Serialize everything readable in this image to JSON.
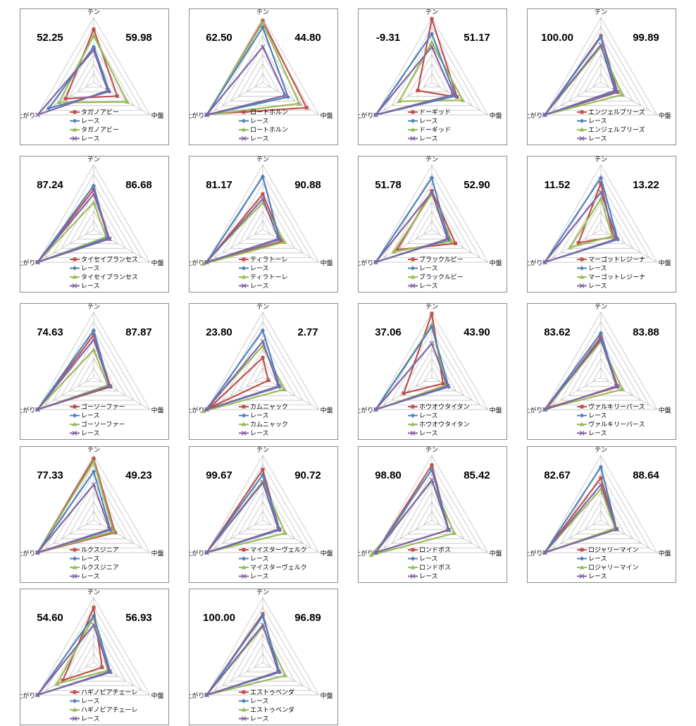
{
  "chart_data": [
    {
      "type": "radar",
      "axes": [
        "テン",
        "中盤",
        "上がり"
      ],
      "left_value": "52.25",
      "right_value": "59.98",
      "series": [
        {
          "name": "タガノアビー",
          "color": "#c0504d",
          "marker": "square",
          "values": [
            0.82,
            0.42,
            0.5
          ]
        },
        {
          "name": "レース",
          "color": "#4f81bd",
          "marker": "diamond",
          "values": [
            0.55,
            0.28,
            0.8
          ]
        },
        {
          "name": "タガノアビー",
          "color": "#9bbb59",
          "marker": "triangle",
          "values": [
            0.72,
            0.6,
            0.62
          ]
        },
        {
          "name": "レース",
          "color": "#8064a2",
          "marker": "x",
          "values": [
            0.5,
            0.25,
            1.0
          ]
        }
      ]
    },
    {
      "type": "radar",
      "axes": [
        "テン",
        "中盤",
        "上がり"
      ],
      "left_value": "62.50",
      "right_value": "44.80",
      "series": [
        {
          "name": "ロートホルン",
          "color": "#c0504d",
          "marker": "square",
          "values": [
            0.95,
            0.78,
            0.98
          ]
        },
        {
          "name": "レース",
          "color": "#4f81bd",
          "marker": "diamond",
          "values": [
            0.85,
            0.45,
            1.0
          ]
        },
        {
          "name": "ロートホルン",
          "color": "#9bbb59",
          "marker": "triangle",
          "values": [
            0.92,
            0.65,
            1.0
          ]
        },
        {
          "name": "レース",
          "color": "#8064a2",
          "marker": "x",
          "values": [
            0.55,
            0.4,
            1.0
          ]
        }
      ]
    },
    {
      "type": "radar",
      "axes": [
        "テン",
        "中盤",
        "上がり"
      ],
      "left_value": "-9.31",
      "right_value": "51.17",
      "series": [
        {
          "name": "ドーギッド",
          "color": "#c0504d",
          "marker": "square",
          "values": [
            0.98,
            0.45,
            0.25
          ]
        },
        {
          "name": "レース",
          "color": "#4f81bd",
          "marker": "diamond",
          "values": [
            0.75,
            0.42,
            1.0
          ]
        },
        {
          "name": "ドーギッド",
          "color": "#9bbb59",
          "marker": "triangle",
          "values": [
            0.62,
            0.55,
            0.58
          ]
        },
        {
          "name": "レース",
          "color": "#8064a2",
          "marker": "x",
          "values": [
            0.55,
            0.38,
            1.0
          ]
        }
      ]
    },
    {
      "type": "radar",
      "axes": [
        "テン",
        "中盤",
        "上がり"
      ],
      "left_value": "100.00",
      "right_value": "99.89",
      "series": [
        {
          "name": "エンジェルブリーズ",
          "color": "#c0504d",
          "marker": "square",
          "values": [
            0.72,
            0.3,
            1.0
          ]
        },
        {
          "name": "レース",
          "color": "#4f81bd",
          "marker": "diamond",
          "values": [
            0.7,
            0.28,
            1.0
          ]
        },
        {
          "name": "エンジェルブリーズ",
          "color": "#9bbb59",
          "marker": "triangle",
          "values": [
            0.55,
            0.38,
            1.0
          ]
        },
        {
          "name": "レース",
          "color": "#8064a2",
          "marker": "x",
          "values": [
            0.58,
            0.25,
            1.0
          ]
        }
      ]
    },
    {
      "type": "radar",
      "axes": [
        "テン",
        "中盤",
        "上がり"
      ],
      "left_value": "87.24",
      "right_value": "86.68",
      "series": [
        {
          "name": "タイセイブランセス",
          "color": "#c0504d",
          "marker": "square",
          "values": [
            0.62,
            0.28,
            1.0
          ]
        },
        {
          "name": "レース",
          "color": "#4f81bd",
          "marker": "diamond",
          "values": [
            0.68,
            0.25,
            1.0
          ]
        },
        {
          "name": "タイセイブランセス",
          "color": "#9bbb59",
          "marker": "triangle",
          "values": [
            0.42,
            0.22,
            1.0
          ]
        },
        {
          "name": "レース",
          "color": "#8064a2",
          "marker": "x",
          "values": [
            0.55,
            0.28,
            1.0
          ]
        }
      ]
    },
    {
      "type": "radar",
      "axes": [
        "テン",
        "中盤",
        "上がり"
      ],
      "left_value": "81.17",
      "right_value": "90.88",
      "series": [
        {
          "name": "ティラトーレ",
          "color": "#c0504d",
          "marker": "square",
          "values": [
            0.55,
            0.35,
            1.0
          ]
        },
        {
          "name": "レース",
          "color": "#4f81bd",
          "marker": "diamond",
          "values": [
            0.82,
            0.3,
            1.0
          ]
        },
        {
          "name": "ティラトーレ",
          "color": "#9bbb59",
          "marker": "triangle",
          "values": [
            0.42,
            0.38,
            1.05
          ]
        },
        {
          "name": "レース",
          "color": "#8064a2",
          "marker": "x",
          "values": [
            0.48,
            0.28,
            1.0
          ]
        }
      ]
    },
    {
      "type": "radar",
      "axes": [
        "テン",
        "中盤",
        "上がり"
      ],
      "left_value": "51.78",
      "right_value": "52.90",
      "series": [
        {
          "name": "ブラックルビー",
          "color": "#c0504d",
          "marker": "square",
          "values": [
            0.6,
            0.42,
            0.62
          ]
        },
        {
          "name": "レース",
          "color": "#4f81bd",
          "marker": "diamond",
          "values": [
            0.8,
            0.3,
            1.0
          ]
        },
        {
          "name": "ブラックルビー",
          "color": "#9bbb59",
          "marker": "triangle",
          "values": [
            0.55,
            0.35,
            0.68
          ]
        },
        {
          "name": "レース",
          "color": "#8064a2",
          "marker": "x",
          "values": [
            0.58,
            0.28,
            1.0
          ]
        }
      ]
    },
    {
      "type": "radar",
      "axes": [
        "テン",
        "中盤",
        "上がり"
      ],
      "left_value": "11.52",
      "right_value": "13.22",
      "series": [
        {
          "name": "マーゴットレジーナ",
          "color": "#c0504d",
          "marker": "square",
          "values": [
            0.72,
            0.22,
            0.4
          ]
        },
        {
          "name": "レース",
          "color": "#4f81bd",
          "marker": "diamond",
          "values": [
            0.8,
            0.3,
            1.0
          ]
        },
        {
          "name": "マーゴットレジーナ",
          "color": "#9bbb59",
          "marker": "triangle",
          "values": [
            0.48,
            0.2,
            0.55
          ]
        },
        {
          "name": "レース",
          "color": "#8064a2",
          "marker": "x",
          "values": [
            0.58,
            0.28,
            1.0
          ]
        }
      ]
    },
    {
      "type": "radar",
      "axes": [
        "テン",
        "中盤",
        "上がり"
      ],
      "left_value": "74.63",
      "right_value": "87.87",
      "series": [
        {
          "name": "ゴーソーファー",
          "color": "#c0504d",
          "marker": "square",
          "values": [
            0.65,
            0.3,
            1.0
          ]
        },
        {
          "name": "レース",
          "color": "#4f81bd",
          "marker": "diamond",
          "values": [
            0.72,
            0.28,
            1.0
          ]
        },
        {
          "name": "ゴーソーファー",
          "color": "#9bbb59",
          "marker": "triangle",
          "values": [
            0.42,
            0.25,
            1.0
          ]
        },
        {
          "name": "レース",
          "color": "#8064a2",
          "marker": "x",
          "values": [
            0.58,
            0.28,
            1.0
          ]
        }
      ]
    },
    {
      "type": "radar",
      "axes": [
        "テン",
        "中盤",
        "上がり"
      ],
      "left_value": "23.80",
      "right_value": "2.77",
      "series": [
        {
          "name": "カムニャック",
          "color": "#c0504d",
          "marker": "square",
          "values": [
            0.3,
            0.1,
            0.95
          ]
        },
        {
          "name": "レース",
          "color": "#4f81bd",
          "marker": "diamond",
          "values": [
            0.72,
            0.3,
            1.0
          ]
        },
        {
          "name": "カムニャック",
          "color": "#9bbb59",
          "marker": "triangle",
          "values": [
            0.48,
            0.38,
            1.05
          ]
        },
        {
          "name": "レース",
          "color": "#8064a2",
          "marker": "x",
          "values": [
            0.55,
            0.28,
            1.0
          ]
        }
      ]
    },
    {
      "type": "radar",
      "axes": [
        "テン",
        "中盤",
        "上がり"
      ],
      "left_value": "37.06",
      "right_value": "43.90",
      "series": [
        {
          "name": "ホウオウタイタン",
          "color": "#c0504d",
          "marker": "square",
          "values": [
            0.98,
            0.2,
            0.5
          ]
        },
        {
          "name": "レース",
          "color": "#4f81bd",
          "marker": "diamond",
          "values": [
            0.78,
            0.3,
            1.0
          ]
        },
        {
          "name": "ホウオウタイタン",
          "color": "#9bbb59",
          "marker": "triangle",
          "values": [
            0.8,
            0.25,
            1.0
          ]
        },
        {
          "name": "レース",
          "color": "#8064a2",
          "marker": "x",
          "values": [
            0.52,
            0.28,
            1.0
          ]
        }
      ]
    },
    {
      "type": "radar",
      "axes": [
        "テン",
        "中盤",
        "上がり"
      ],
      "left_value": "83.62",
      "right_value": "83.88",
      "series": [
        {
          "name": "ヴァルキリーバース",
          "color": "#c0504d",
          "marker": "square",
          "values": [
            0.62,
            0.3,
            0.95
          ]
        },
        {
          "name": "レース",
          "color": "#4f81bd",
          "marker": "diamond",
          "values": [
            0.68,
            0.28,
            1.0
          ]
        },
        {
          "name": "ヴァルキリーバース",
          "color": "#9bbb59",
          "marker": "triangle",
          "values": [
            0.55,
            0.38,
            0.98
          ]
        },
        {
          "name": "レース",
          "color": "#8064a2",
          "marker": "x",
          "values": [
            0.58,
            0.28,
            1.0
          ]
        }
      ]
    },
    {
      "type": "radar",
      "axes": [
        "テン",
        "中盤",
        "上がり"
      ],
      "left_value": "77.33",
      "right_value": "49.23",
      "series": [
        {
          "name": "ルクスジニア",
          "color": "#c0504d",
          "marker": "square",
          "values": [
            0.95,
            0.38,
            1.0
          ]
        },
        {
          "name": "レース",
          "color": "#4f81bd",
          "marker": "diamond",
          "values": [
            0.75,
            0.3,
            1.0
          ]
        },
        {
          "name": "ルクスジニア",
          "color": "#9bbb59",
          "marker": "triangle",
          "values": [
            0.9,
            0.35,
            1.0
          ]
        },
        {
          "name": "レース",
          "color": "#8064a2",
          "marker": "x",
          "values": [
            0.55,
            0.28,
            1.0
          ]
        }
      ]
    },
    {
      "type": "radar",
      "axes": [
        "テン",
        "中盤",
        "上がり"
      ],
      "left_value": "99.67",
      "right_value": "90.72",
      "series": [
        {
          "name": "マイスターヴェルク",
          "color": "#c0504d",
          "marker": "square",
          "values": [
            0.78,
            0.3,
            1.0
          ]
        },
        {
          "name": "レース",
          "color": "#4f81bd",
          "marker": "diamond",
          "values": [
            0.7,
            0.3,
            1.0
          ]
        },
        {
          "name": "マイスターヴェルク",
          "color": "#9bbb59",
          "marker": "triangle",
          "values": [
            0.6,
            0.4,
            1.0
          ]
        },
        {
          "name": "レース",
          "color": "#8064a2",
          "marker": "x",
          "values": [
            0.58,
            0.28,
            1.0
          ]
        }
      ]
    },
    {
      "type": "radar",
      "axes": [
        "テン",
        "中盤",
        "上がり"
      ],
      "left_value": "98.80",
      "right_value": "85.42",
      "series": [
        {
          "name": "ロンドボス",
          "color": "#c0504d",
          "marker": "square",
          "values": [
            0.85,
            0.3,
            1.0
          ]
        },
        {
          "name": "レース",
          "color": "#4f81bd",
          "marker": "diamond",
          "values": [
            0.78,
            0.3,
            1.0
          ]
        },
        {
          "name": "ロンドボス",
          "color": "#9bbb59",
          "marker": "triangle",
          "values": [
            0.6,
            0.4,
            1.08
          ]
        },
        {
          "name": "レース",
          "color": "#8064a2",
          "marker": "x",
          "values": [
            0.62,
            0.3,
            1.0
          ]
        }
      ]
    },
    {
      "type": "radar",
      "axes": [
        "テン",
        "中盤",
        "上がり"
      ],
      "left_value": "82.67",
      "right_value": "88.64",
      "series": [
        {
          "name": "ロジャリーマイン",
          "color": "#c0504d",
          "marker": "square",
          "values": [
            0.65,
            0.28,
            1.0
          ]
        },
        {
          "name": "レース",
          "color": "#4f81bd",
          "marker": "diamond",
          "values": [
            0.82,
            0.28,
            1.0
          ]
        },
        {
          "name": "ロジャリーマイン",
          "color": "#9bbb59",
          "marker": "triangle",
          "values": [
            0.48,
            0.25,
            1.0
          ]
        },
        {
          "name": "レース",
          "color": "#8064a2",
          "marker": "x",
          "values": [
            0.55,
            0.28,
            1.0
          ]
        }
      ]
    },
    {
      "type": "radar",
      "axes": [
        "テン",
        "中盤",
        "上がり"
      ],
      "left_value": "54.60",
      "right_value": "56.93",
      "series": [
        {
          "name": "ハギノピアチェーレ",
          "color": "#c0504d",
          "marker": "square",
          "values": [
            0.85,
            0.15,
            0.55
          ]
        },
        {
          "name": "レース",
          "color": "#4f81bd",
          "marker": "diamond",
          "values": [
            0.72,
            0.3,
            1.0
          ]
        },
        {
          "name": "ハギノピアチェーレ",
          "color": "#9bbb59",
          "marker": "triangle",
          "values": [
            0.7,
            0.25,
            0.65
          ]
        },
        {
          "name": "レース",
          "color": "#8064a2",
          "marker": "x",
          "values": [
            0.58,
            0.28,
            1.0
          ]
        }
      ]
    },
    {
      "type": "radar",
      "axes": [
        "テン",
        "中盤",
        "上がり"
      ],
      "left_value": "100.00",
      "right_value": "96.89",
      "series": [
        {
          "name": "エストゥベンダ",
          "color": "#c0504d",
          "marker": "square",
          "values": [
            0.75,
            0.28,
            1.0
          ]
        },
        {
          "name": "レース",
          "color": "#4f81bd",
          "marker": "diamond",
          "values": [
            0.72,
            0.3,
            1.0
          ]
        },
        {
          "name": "エストゥベンダ",
          "color": "#9bbb59",
          "marker": "triangle",
          "values": [
            0.55,
            0.4,
            1.0
          ]
        },
        {
          "name": "レース",
          "color": "#8064a2",
          "marker": "x",
          "values": [
            0.58,
            0.28,
            1.0
          ]
        }
      ]
    }
  ]
}
